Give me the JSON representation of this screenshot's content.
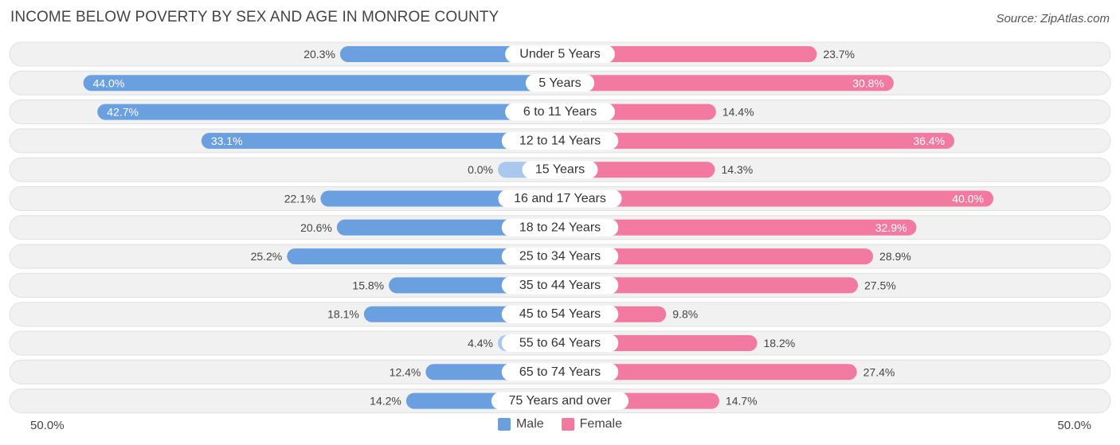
{
  "title": "INCOME BELOW POVERTY BY SEX AND AGE IN MONROE COUNTY",
  "source": "Source: ZipAtlas.com",
  "colors": {
    "male": "#6a9fe0",
    "male_light": "#a9c8ec",
    "female": "#f27aa0",
    "female_light": "#f6a9c3",
    "row_bg": "#f1f1f1",
    "row_border": "#e0e0e0"
  },
  "legend": {
    "male_label": "Male",
    "female_label": "Female"
  },
  "axis": {
    "left_label": "50.0%",
    "right_label": "50.0%"
  },
  "chart_data": {
    "type": "bar",
    "orientation": "horizontal-diverging",
    "title": "INCOME BELOW POVERTY BY SEX AND AGE IN MONROE COUNTY",
    "xlim": [
      -50,
      50
    ],
    "categories": [
      "Under 5 Years",
      "5 Years",
      "6 to 11 Years",
      "12 to 14 Years",
      "15 Years",
      "16 and 17 Years",
      "18 to 24 Years",
      "25 to 34 Years",
      "35 to 44 Years",
      "45 to 54 Years",
      "55 to 64 Years",
      "65 to 74 Years",
      "75 Years and over"
    ],
    "series": [
      {
        "name": "Male",
        "values": [
          20.3,
          44.0,
          42.7,
          33.1,
          0.0,
          22.1,
          20.6,
          25.2,
          15.8,
          18.1,
          4.4,
          12.4,
          14.2
        ],
        "labels": [
          "20.3%",
          "44.0%",
          "42.7%",
          "33.1%",
          "0.0%",
          "22.1%",
          "20.6%",
          "25.2%",
          "15.8%",
          "18.1%",
          "4.4%",
          "12.4%",
          "14.2%"
        ]
      },
      {
        "name": "Female",
        "values": [
          23.7,
          30.8,
          14.4,
          36.4,
          14.3,
          40.0,
          32.9,
          28.9,
          27.5,
          9.8,
          18.2,
          27.4,
          14.7
        ],
        "labels": [
          "23.7%",
          "30.8%",
          "14.4%",
          "36.4%",
          "14.3%",
          "40.0%",
          "32.9%",
          "28.9%",
          "27.5%",
          "9.8%",
          "18.2%",
          "27.4%",
          "14.7%"
        ]
      }
    ]
  }
}
